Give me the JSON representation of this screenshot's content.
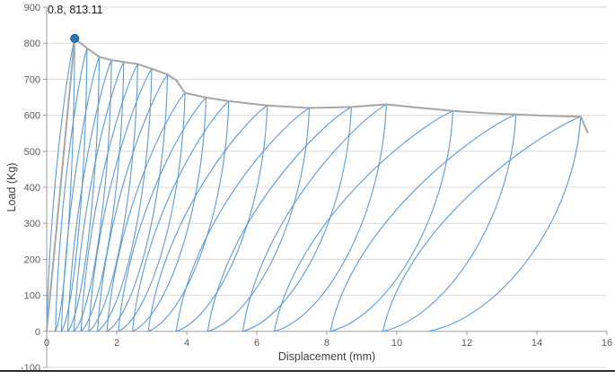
{
  "chart_data": {
    "type": "line",
    "title": "",
    "xlabel": "Displacement (mm)",
    "ylabel": "Load (Kg)",
    "xlim": [
      0,
      16
    ],
    "ylim": [
      -100,
      900
    ],
    "x_ticks": [
      0,
      2,
      4,
      6,
      8,
      10,
      12,
      14,
      16
    ],
    "y_ticks": [
      -100,
      0,
      100,
      200,
      300,
      400,
      500,
      600,
      700,
      800,
      900
    ],
    "grid": "horizontal-only",
    "legend": "none",
    "annotation": {
      "label": "0.8, 813.11",
      "x": 0.8,
      "y": 813.11
    },
    "colors": {
      "cycles": "#5b9bd5",
      "envelope": "#a6a6a6",
      "grid": "#d9d9d9",
      "axis": "#9b9b9b",
      "tick_text": "#595959",
      "marker_fill": "#2e75b6",
      "marker_edge": "#1f5c99"
    },
    "series": [
      {
        "name": "envelope",
        "type": "line",
        "color": "#a6a6a6",
        "points": [
          [
            0,
            0
          ],
          [
            0.8,
            813.11
          ],
          [
            1.15,
            786
          ],
          [
            1.5,
            762
          ],
          [
            1.85,
            753
          ],
          [
            2.2,
            748
          ],
          [
            2.6,
            742
          ],
          [
            3.0,
            729
          ],
          [
            3.45,
            713
          ],
          [
            3.7,
            697
          ],
          [
            3.95,
            662
          ],
          [
            4.55,
            649
          ],
          [
            5.2,
            639
          ],
          [
            6.3,
            627
          ],
          [
            7.5,
            620
          ],
          [
            8.7,
            623
          ],
          [
            9.7,
            630
          ],
          [
            10.6,
            621
          ],
          [
            11.6,
            612
          ],
          [
            12.5,
            606
          ],
          [
            13.4,
            602
          ],
          [
            14.4,
            598
          ],
          [
            15.25,
            596
          ],
          [
            15.45,
            552
          ]
        ]
      },
      {
        "name": "cycles",
        "type": "hysteresis-loops",
        "color": "#5b9bd5",
        "cycles": [
          {
            "peak_x": 0.8,
            "peak_y": 813.11,
            "residual_x": 0.25
          },
          {
            "peak_x": 1.15,
            "peak_y": 786,
            "residual_x": 0.42
          },
          {
            "peak_x": 1.5,
            "peak_y": 762,
            "residual_x": 0.6
          },
          {
            "peak_x": 1.85,
            "peak_y": 753,
            "residual_x": 0.78
          },
          {
            "peak_x": 2.2,
            "peak_y": 748,
            "residual_x": 0.98
          },
          {
            "peak_x": 2.6,
            "peak_y": 742,
            "residual_x": 1.2
          },
          {
            "peak_x": 3.0,
            "peak_y": 729,
            "residual_x": 1.45
          },
          {
            "peak_x": 3.45,
            "peak_y": 713,
            "residual_x": 1.72
          },
          {
            "peak_x": 3.95,
            "peak_y": 662,
            "residual_x": 2.05
          },
          {
            "peak_x": 4.55,
            "peak_y": 649,
            "residual_x": 2.45
          },
          {
            "peak_x": 5.2,
            "peak_y": 639,
            "residual_x": 2.9
          },
          {
            "peak_x": 6.3,
            "peak_y": 627,
            "residual_x": 3.7
          },
          {
            "peak_x": 7.5,
            "peak_y": 620,
            "residual_x": 4.6
          },
          {
            "peak_x": 8.7,
            "peak_y": 623,
            "residual_x": 5.6
          },
          {
            "peak_x": 9.7,
            "peak_y": 630,
            "residual_x": 6.5
          },
          {
            "peak_x": 11.6,
            "peak_y": 612,
            "residual_x": 8.1
          },
          {
            "peak_x": 13.4,
            "peak_y": 602,
            "residual_x": 9.6
          },
          {
            "peak_x": 15.25,
            "peak_y": 596,
            "residual_x": 10.9
          }
        ]
      }
    ]
  }
}
